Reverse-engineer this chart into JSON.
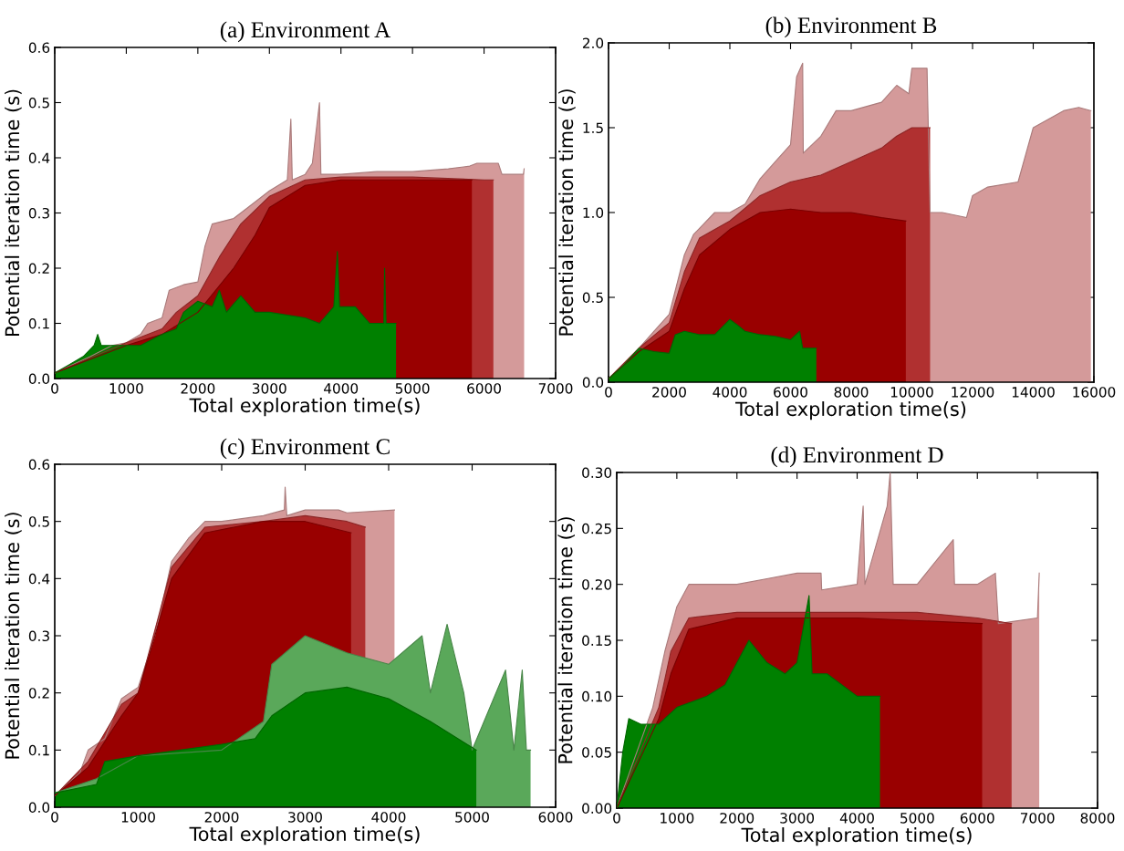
{
  "chart_data": [
    {
      "type": "area",
      "title": "(a) Environment A",
      "xlabel": "Total exploration time(s)",
      "ylabel": "Potential iteration time (s)",
      "xlim": [
        0,
        7000
      ],
      "xticks": [
        0,
        1000,
        2000,
        3000,
        4000,
        5000,
        6000,
        7000
      ],
      "ylim": [
        0,
        0.6
      ],
      "yticks": [
        {
          "value": 0,
          "label": "0.0"
        },
        {
          "value": 0.1,
          "label": "0.1"
        },
        {
          "value": 0.2,
          "label": "0.2"
        },
        {
          "value": 0.3,
          "label": "0.3"
        },
        {
          "value": 0.4,
          "label": "0.4"
        },
        {
          "value": 0.5,
          "label": "0.5"
        },
        {
          "value": 0.6,
          "label": "0.6"
        }
      ],
      "grid": false,
      "legend": false,
      "series": [
        {
          "color": "#d49a9a",
          "x": [
            0,
            500,
            800,
            1000,
            1200,
            1300,
            1500,
            1600,
            1800,
            2000,
            2100,
            2200,
            2500,
            2700,
            3000,
            3250,
            3300,
            3320,
            3500,
            3600,
            3700,
            3720,
            4000,
            4500,
            5000,
            5500,
            5800,
            5900,
            6200,
            6250,
            6550,
            6560
          ],
          "values": [
            0.01,
            0.04,
            0.06,
            0.065,
            0.08,
            0.1,
            0.11,
            0.16,
            0.17,
            0.175,
            0.24,
            0.28,
            0.29,
            0.31,
            0.34,
            0.36,
            0.47,
            0.36,
            0.37,
            0.39,
            0.5,
            0.37,
            0.37,
            0.375,
            0.375,
            0.38,
            0.385,
            0.39,
            0.39,
            0.37,
            0.37,
            0.38
          ]
        },
        {
          "color": "#b03030",
          "x": [
            0,
            1000,
            1500,
            1700,
            2000,
            2300,
            2600,
            3000,
            3500,
            4000,
            5000,
            6000,
            6130
          ],
          "values": [
            0.01,
            0.065,
            0.09,
            0.12,
            0.15,
            0.22,
            0.28,
            0.33,
            0.36,
            0.365,
            0.365,
            0.36,
            0.36
          ]
        },
        {
          "color": "#990000",
          "x": [
            0,
            1000,
            1500,
            2000,
            2500,
            2800,
            3000,
            3500,
            4000,
            5000,
            5830
          ],
          "values": [
            0.01,
            0.06,
            0.08,
            0.12,
            0.2,
            0.26,
            0.31,
            0.35,
            0.36,
            0.36,
            0.36
          ]
        },
        {
          "color": "#008000",
          "x": [
            0,
            200,
            400,
            550,
            600,
            650,
            900,
            1200,
            1500,
            1700,
            1800,
            2000,
            2200,
            2300,
            2400,
            2600,
            2800,
            3000,
            3500,
            3700,
            3900,
            3950,
            3980,
            4200,
            4400,
            4600,
            4610,
            4630,
            4770
          ],
          "values": [
            0.01,
            0.025,
            0.04,
            0.06,
            0.08,
            0.06,
            0.06,
            0.06,
            0.08,
            0.09,
            0.12,
            0.14,
            0.13,
            0.16,
            0.12,
            0.15,
            0.12,
            0.12,
            0.11,
            0.1,
            0.13,
            0.23,
            0.13,
            0.13,
            0.1,
            0.1,
            0.2,
            0.1,
            0.1
          ]
        }
      ]
    },
    {
      "type": "area",
      "title": "(b) Environment B",
      "xlabel": "Total exploration time(s)",
      "ylabel": "Potential iteration time (s)",
      "xlim": [
        0,
        16000
      ],
      "xticks": [
        0,
        2000,
        4000,
        6000,
        8000,
        10000,
        12000,
        14000,
        16000
      ],
      "ylim": [
        0,
        2.0
      ],
      "yticks": [
        {
          "value": 0,
          "label": "0.0"
        },
        {
          "value": 0.5,
          "label": "0.5"
        },
        {
          "value": 1.0,
          "label": "1.0"
        },
        {
          "value": 1.5,
          "label": "1.5"
        },
        {
          "value": 2.0,
          "label": "2.0"
        }
      ],
      "grid": false,
      "legend": false,
      "series": [
        {
          "color": "#d49a9a",
          "x": [
            0,
            1000,
            1500,
            2000,
            2500,
            2800,
            3500,
            4000,
            4500,
            5000,
            5500,
            6000,
            6200,
            6400,
            6420,
            7000,
            7500,
            8000,
            9000,
            9500,
            9900,
            10000,
            10500,
            10600,
            11000,
            11800,
            12000,
            12500,
            13500,
            14000,
            14500,
            15000,
            15500,
            15900
          ],
          "values": [
            0.02,
            0.2,
            0.3,
            0.4,
            0.75,
            0.87,
            1.0,
            1.0,
            1.05,
            1.2,
            1.3,
            1.4,
            1.8,
            1.88,
            1.35,
            1.45,
            1.6,
            1.6,
            1.65,
            1.75,
            1.7,
            1.85,
            1.85,
            1.0,
            1.0,
            0.97,
            1.1,
            1.15,
            1.18,
            1.5,
            1.55,
            1.6,
            1.62,
            1.6
          ]
        },
        {
          "color": "#b03030",
          "x": [
            0,
            1000,
            2000,
            2500,
            3000,
            4000,
            5000,
            6000,
            7000,
            8000,
            9000,
            9500,
            10000,
            10600
          ],
          "values": [
            0.02,
            0.2,
            0.35,
            0.65,
            0.85,
            0.95,
            1.1,
            1.18,
            1.22,
            1.3,
            1.38,
            1.45,
            1.5,
            1.5
          ]
        },
        {
          "color": "#990000",
          "x": [
            0,
            1000,
            2000,
            2500,
            3000,
            4000,
            5000,
            6000,
            7000,
            8000,
            9000,
            9800
          ],
          "values": [
            0.02,
            0.18,
            0.3,
            0.55,
            0.75,
            0.9,
            1.0,
            1.02,
            1.0,
            1.0,
            0.97,
            0.95
          ]
        },
        {
          "color": "#008000",
          "x": [
            0,
            500,
            1000,
            1500,
            2000,
            2200,
            2500,
            3000,
            3500,
            4000,
            4300,
            4500,
            5000,
            5500,
            6000,
            6300,
            6400,
            6850
          ],
          "values": [
            0.02,
            0.1,
            0.2,
            0.18,
            0.17,
            0.28,
            0.3,
            0.28,
            0.28,
            0.37,
            0.33,
            0.3,
            0.28,
            0.27,
            0.25,
            0.3,
            0.2,
            0.2
          ]
        }
      ]
    },
    {
      "type": "area",
      "title": "(c) Environment C",
      "xlabel": "Total exploration time(s)",
      "ylabel": "Potential iteration time (s)",
      "xlim": [
        0,
        6000
      ],
      "xticks": [
        0,
        1000,
        2000,
        3000,
        4000,
        5000,
        6000
      ],
      "ylim": [
        0,
        0.6
      ],
      "yticks": [
        {
          "value": 0,
          "label": "0.0"
        },
        {
          "value": 0.1,
          "label": "0.1"
        },
        {
          "value": 0.2,
          "label": "0.2"
        },
        {
          "value": 0.3,
          "label": "0.3"
        },
        {
          "value": 0.4,
          "label": "0.4"
        },
        {
          "value": 0.5,
          "label": "0.5"
        },
        {
          "value": 0.6,
          "label": "0.6"
        }
      ],
      "grid": false,
      "legend": false,
      "series": [
        {
          "color": "#d49a9a",
          "x": [
            0,
            300,
            400,
            600,
            800,
            1000,
            1200,
            1400,
            1600,
            1800,
            2000,
            2500,
            2750,
            2760,
            2780,
            3000,
            3400,
            3500,
            4070
          ],
          "values": [
            0.02,
            0.06,
            0.1,
            0.12,
            0.19,
            0.21,
            0.3,
            0.43,
            0.47,
            0.5,
            0.5,
            0.51,
            0.52,
            0.56,
            0.51,
            0.52,
            0.52,
            0.515,
            0.52
          ]
        },
        {
          "color": "#b03030",
          "x": [
            0,
            400,
            800,
            1000,
            1400,
            1800,
            2500,
            3000,
            3500,
            3720
          ],
          "values": [
            0.02,
            0.08,
            0.18,
            0.2,
            0.42,
            0.49,
            0.5,
            0.51,
            0.5,
            0.49
          ]
        },
        {
          "color": "#990000",
          "x": [
            0,
            400,
            800,
            1000,
            1400,
            1800,
            2500,
            3000,
            3550
          ],
          "values": [
            0.02,
            0.07,
            0.16,
            0.2,
            0.4,
            0.48,
            0.5,
            0.5,
            0.48
          ]
        },
        {
          "color": "#5aa85a",
          "x": [
            0,
            500,
            1000,
            2000,
            2500,
            2600,
            3000,
            3500,
            4000,
            4400,
            4500,
            4700,
            4900,
            5000,
            5400,
            5500,
            5600,
            5650,
            5700
          ],
          "values": [
            0.025,
            0.05,
            0.09,
            0.1,
            0.15,
            0.25,
            0.3,
            0.27,
            0.25,
            0.3,
            0.2,
            0.32,
            0.2,
            0.1,
            0.24,
            0.1,
            0.24,
            0.1,
            0.1
          ]
        },
        {
          "color": "#008000",
          "x": [
            0,
            500,
            600,
            1000,
            1500,
            2000,
            2400,
            2600,
            3000,
            3500,
            4000,
            4500,
            5050
          ],
          "values": [
            0.025,
            0.04,
            0.08,
            0.09,
            0.1,
            0.11,
            0.12,
            0.16,
            0.2,
            0.21,
            0.19,
            0.15,
            0.1
          ]
        }
      ]
    },
    {
      "type": "area",
      "title": "(d) Environment D",
      "xlabel": "Total exploration time(s)",
      "ylabel": "Potential iteration time (s)",
      "xlim": [
        0,
        8000
      ],
      "xticks": [
        0,
        1000,
        2000,
        3000,
        4000,
        5000,
        6000,
        7000,
        8000
      ],
      "ylim": [
        0,
        0.3
      ],
      "yticks": [
        {
          "value": 0,
          "label": "0.00"
        },
        {
          "value": 0.05,
          "label": "0.05"
        },
        {
          "value": 0.1,
          "label": "0.10"
        },
        {
          "value": 0.15,
          "label": "0.15"
        },
        {
          "value": 0.2,
          "label": "0.20"
        },
        {
          "value": 0.25,
          "label": "0.25"
        },
        {
          "value": 0.3,
          "label": "0.30"
        }
      ],
      "grid": false,
      "legend": false,
      "series": [
        {
          "color": "#d49a9a",
          "x": [
            0,
            600,
            800,
            1000,
            1200,
            1500,
            2000,
            2500,
            3000,
            3400,
            3410,
            4000,
            4100,
            4130,
            4500,
            4550,
            4600,
            5000,
            5600,
            5620,
            6000,
            6300,
            6350,
            7000,
            7030
          ],
          "values": [
            0,
            0.09,
            0.14,
            0.18,
            0.2,
            0.2,
            0.2,
            0.205,
            0.21,
            0.21,
            0.195,
            0.2,
            0.27,
            0.2,
            0.27,
            0.3,
            0.2,
            0.2,
            0.24,
            0.2,
            0.2,
            0.21,
            0.165,
            0.17,
            0.21
          ]
        },
        {
          "color": "#b03030",
          "x": [
            0,
            700,
            900,
            1200,
            2000,
            4000,
            5000,
            6000,
            6570
          ],
          "values": [
            0,
            0.09,
            0.14,
            0.17,
            0.175,
            0.175,
            0.175,
            0.17,
            0.165
          ]
        },
        {
          "color": "#990000",
          "x": [
            0,
            700,
            900,
            1200,
            2000,
            4000,
            6080
          ],
          "values": [
            0,
            0.08,
            0.12,
            0.16,
            0.17,
            0.17,
            0.165
          ]
        },
        {
          "color": "#008000",
          "x": [
            0,
            100,
            200,
            400,
            700,
            1000,
            1500,
            1800,
            2000,
            2200,
            2500,
            2800,
            3000,
            3200,
            3250,
            3500,
            4000,
            4380
          ],
          "values": [
            0,
            0.05,
            0.08,
            0.075,
            0.075,
            0.09,
            0.1,
            0.11,
            0.13,
            0.15,
            0.13,
            0.12,
            0.13,
            0.19,
            0.12,
            0.12,
            0.1,
            0.1
          ]
        }
      ]
    }
  ]
}
